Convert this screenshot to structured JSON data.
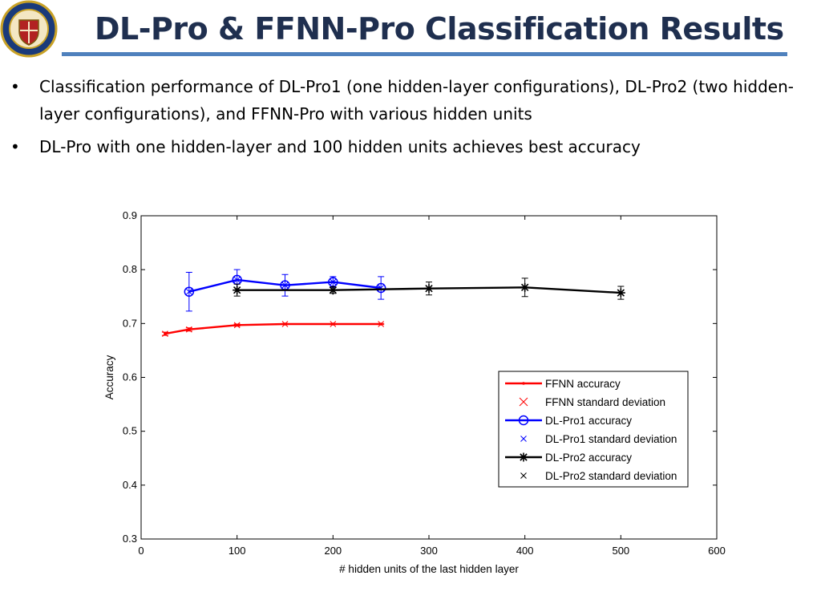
{
  "slide": {
    "title": "DL-Pro & FFNN-Pro Classification Results",
    "bullets": [
      "Classification performance of DL-Pro1 (one hidden-layer configurations), DL-Pro2 (two hidden-layer configurations), and FFNN-Pro with various hidden units",
      "DL-Pro with one hidden-layer and 100 hidden units achieves best accuracy"
    ],
    "bullet_glyph": "•",
    "logo": {
      "icon": "university-seal-icon",
      "colors": [
        "#1a3a7a",
        "#c9a227",
        "#b22222"
      ]
    }
  },
  "chart_data": {
    "type": "line",
    "xlabel": "# hidden units of the last hidden layer",
    "ylabel": "Accuracy",
    "xlim": [
      0,
      600
    ],
    "ylim": [
      0.3,
      0.9
    ],
    "xticks": [
      0,
      100,
      200,
      300,
      400,
      500,
      600
    ],
    "yticks": [
      0.3,
      0.4,
      0.5,
      0.6,
      0.7,
      0.8,
      0.9
    ],
    "grid": false,
    "legend_position": "lower-right",
    "series": [
      {
        "name": "FFNN accuracy",
        "std_name": "FFNN standard deviation",
        "color": "#ff0000",
        "marker": "point",
        "x": [
          25,
          50,
          100,
          150,
          200,
          250
        ],
        "y": [
          0.681,
          0.689,
          0.697,
          0.699,
          0.699,
          0.699
        ],
        "std": [
          0.003,
          0.003,
          0.002,
          0.001,
          0.001,
          0.001
        ]
      },
      {
        "name": "DL-Pro1 accuracy",
        "std_name": "DL-Pro1 standard deviation",
        "color": "#0000ff",
        "marker": "circle",
        "x": [
          50,
          100,
          150,
          200,
          250
        ],
        "y": [
          0.759,
          0.781,
          0.771,
          0.777,
          0.766
        ],
        "std": [
          0.036,
          0.019,
          0.02,
          0.01,
          0.021
        ]
      },
      {
        "name": "DL-Pro2 accuracy",
        "std_name": "DL-Pro2 standard deviation",
        "color": "#000000",
        "marker": "asterisk",
        "x": [
          100,
          200,
          300,
          400,
          500
        ],
        "y": [
          0.762,
          0.762,
          0.765,
          0.767,
          0.757
        ],
        "std": [
          0.011,
          0.006,
          0.012,
          0.017,
          0.012
        ]
      }
    ]
  }
}
